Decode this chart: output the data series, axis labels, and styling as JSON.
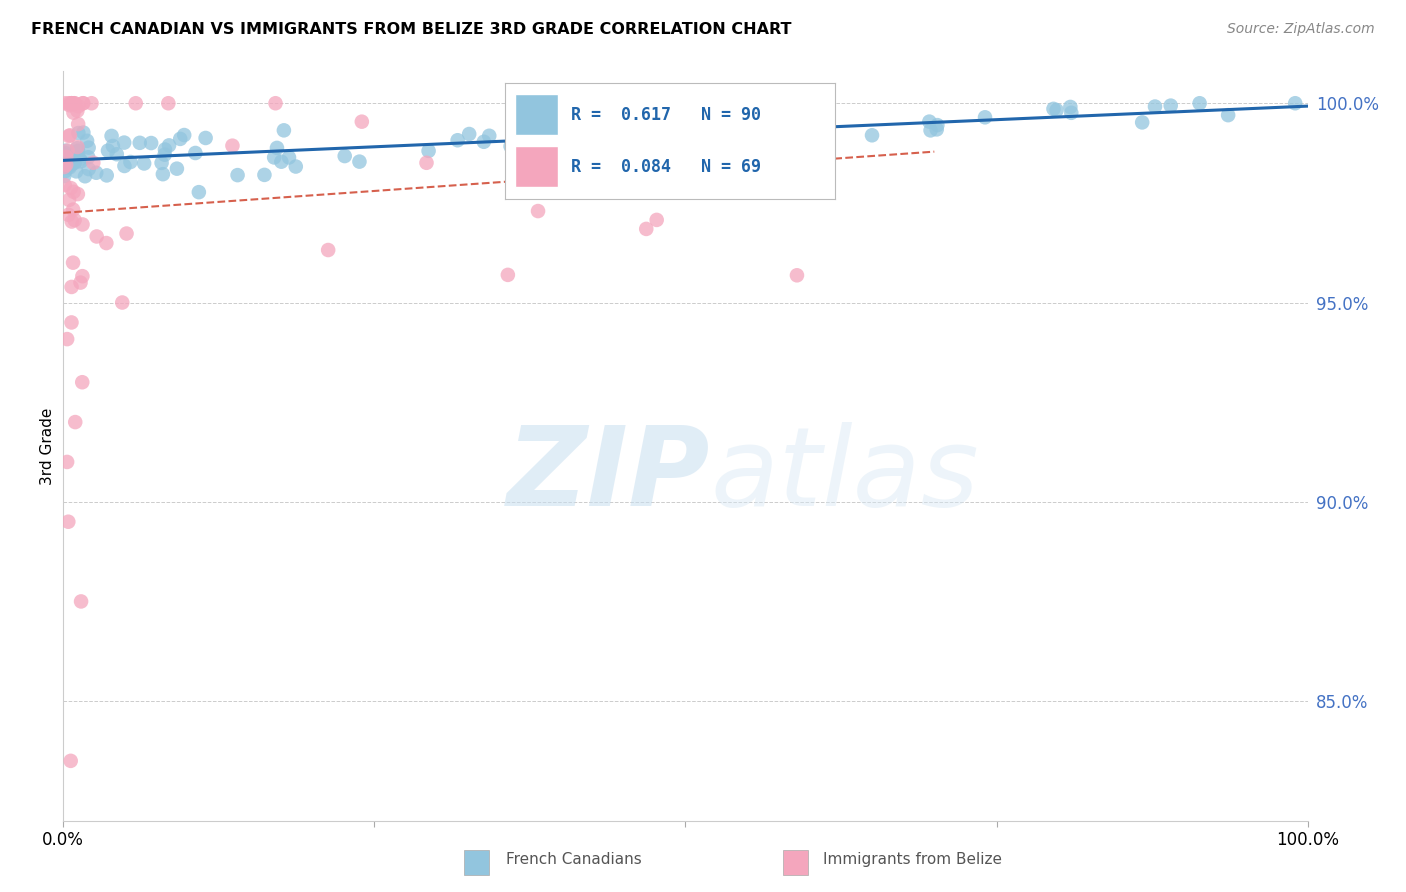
{
  "title": "FRENCH CANADIAN VS IMMIGRANTS FROM BELIZE 3RD GRADE CORRELATION CHART",
  "source": "Source: ZipAtlas.com",
  "ylabel": "3rd Grade",
  "right_yticks": [
    1.0,
    0.95,
    0.9,
    0.85
  ],
  "right_ytick_labels": [
    "100.0%",
    "95.0%",
    "90.0%",
    "85.0%"
  ],
  "legend_label_blue": "French Canadians",
  "legend_label_pink": "Immigrants from Belize",
  "legend_R_blue": "R =  0.617",
  "legend_N_blue": "N = 90",
  "legend_R_pink": "R =  0.084",
  "legend_N_pink": "N = 69",
  "watermark_zip": "ZIP",
  "watermark_atlas": "atlas",
  "blue_color": "#92c5de",
  "pink_color": "#f4a6bd",
  "trend_blue": "#2166ac",
  "trend_pink": "#d6604d",
  "xlim": [
    0.0,
    1.0
  ],
  "ylim": [
    0.82,
    1.008
  ],
  "background_color": "#ffffff",
  "grid_color": "#cccccc",
  "blue_scatter_seed": 42,
  "pink_scatter_seed": 123
}
